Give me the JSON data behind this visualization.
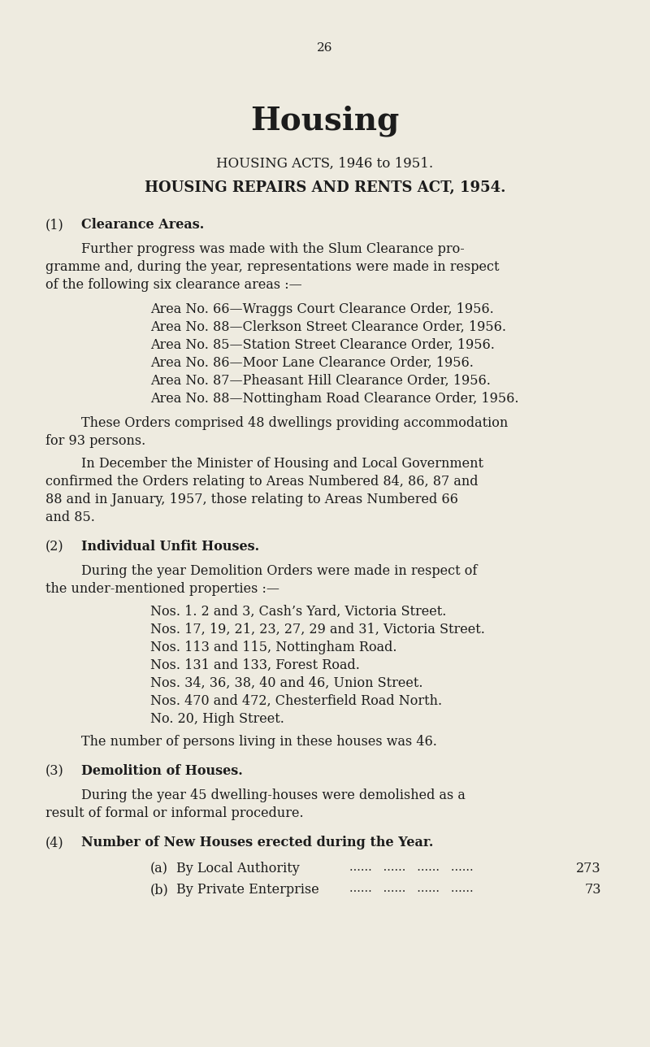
{
  "page_number": "26",
  "bg_color": "#eeebe0",
  "text_color": "#1c1c1c",
  "title_main": "Housing",
  "title_sub1": "HOUSING ACTS, 1946 to 1951.",
  "title_sub2": "HOUSING REPAIRS AND RENTS ACT, 1954.",
  "section1_heading_num": "(1)",
  "section1_heading_text": "Clearance Areas.",
  "section1_para1_line1": "Further progress was made with the Slum Clearance pro-",
  "section1_para1_line2": "gramme and, during the year, representations were made in respect",
  "section1_para1_line3": "of the following six clearance areas :—",
  "section1_list": [
    "Area No. 66—Wraggs Court Clearance Order, 1956.",
    "Area No. 88—Clerkson Street Clearance Order, 1956.",
    "Area No. 85—Station Street Clearance Order, 1956.",
    "Area No. 86—Moor Lane Clearance Order, 1956.",
    "Area No. 87—Pheasant Hill Clearance Order, 1956.",
    "Area No. 88—Nottingham Road Clearance Order, 1956."
  ],
  "section1_para2_line1": "These Orders comprised 48 dwellings providing accommodation",
  "section1_para2_line2": "for 93 persons.",
  "section1_para3_line1": "In December the Minister of Housing and Local Government",
  "section1_para3_line2": "confirmed the Orders relating to Areas Numbered 84, 86, 87 and",
  "section1_para3_line3": "88 and in January, 1957, those relating to Areas Numbered 66",
  "section1_para3_line4": "and 85.",
  "section2_heading_num": "(2)",
  "section2_heading_text": "Individual Unfit Houses.",
  "section2_para1_line1": "During the year Demolition Orders were made in respect of",
  "section2_para1_line2": "the under-mentioned properties :—",
  "section2_list": [
    "Nos. 1. 2 and 3, Cash’s Yard, Victoria Street.",
    "Nos. 17, 19, 21, 23, 27, 29 and 31, Victoria Street.",
    "Nos. 113 and 115, Nottingham Road.",
    "Nos. 131 and 133, Forest Road.",
    "Nos. 34, 36, 38, 40 and 46, Union Street.",
    "Nos. 470 and 472, Chesterfield Road North.",
    "No. 20, High Street."
  ],
  "section2_para2": "The number of persons living in these houses was 46.",
  "section3_heading_num": "(3)",
  "section3_heading_text": "Demolition of Houses.",
  "section3_para1_line1": "During the year 45 dwelling-houses were demolished as a",
  "section3_para1_line2": "result of formal or informal procedure.",
  "section4_heading_num": "(4)",
  "section4_heading_text": "Number of New Houses erected during the Year.",
  "section4_a_label": "(a)",
  "section4_a_text": "By Local Authority",
  "section4_a_dots": "......   ......   ......   ......",
  "section4_a_value": "273",
  "section4_b_label": "(b)",
  "section4_b_text": "By Private Enterprise",
  "section4_b_dots": "......   ......   ......   ......",
  "section4_b_value": "73"
}
